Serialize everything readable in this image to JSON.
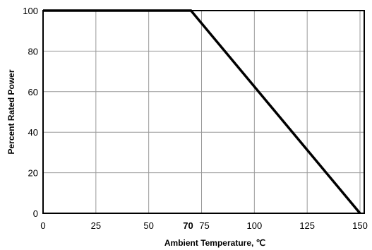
{
  "chart_data": {
    "type": "line",
    "title": "",
    "xlabel": "Ambient Temperature, ℃",
    "ylabel": "Percent Rated Power",
    "xlim": [
      0,
      152
    ],
    "ylim": [
      0,
      100
    ],
    "x_ticks": [
      {
        "value": 0,
        "label": "0",
        "bold": false
      },
      {
        "value": 25,
        "label": "25",
        "bold": false
      },
      {
        "value": 50,
        "label": "50",
        "bold": false
      },
      {
        "value": 70,
        "label": "70",
        "bold": true
      },
      {
        "value": 75,
        "label": "75",
        "bold": false
      },
      {
        "value": 100,
        "label": "100",
        "bold": false
      },
      {
        "value": 125,
        "label": "125",
        "bold": false
      },
      {
        "value": 150,
        "label": "150",
        "bold": false
      }
    ],
    "y_ticks": [
      {
        "value": 0,
        "label": "0"
      },
      {
        "value": 20,
        "label": "20"
      },
      {
        "value": 40,
        "label": "40"
      },
      {
        "value": 60,
        "label": "60"
      },
      {
        "value": 80,
        "label": "80"
      },
      {
        "value": 100,
        "label": "100"
      }
    ],
    "x_grid": [
      25,
      50,
      75,
      100,
      125,
      150
    ],
    "y_grid": [
      20,
      40,
      60,
      80
    ],
    "grid": true,
    "legend": "none",
    "series": [
      {
        "x": [
          0,
          70,
          150
        ],
        "y": [
          100,
          100,
          0
        ],
        "color": "#000000"
      }
    ]
  }
}
